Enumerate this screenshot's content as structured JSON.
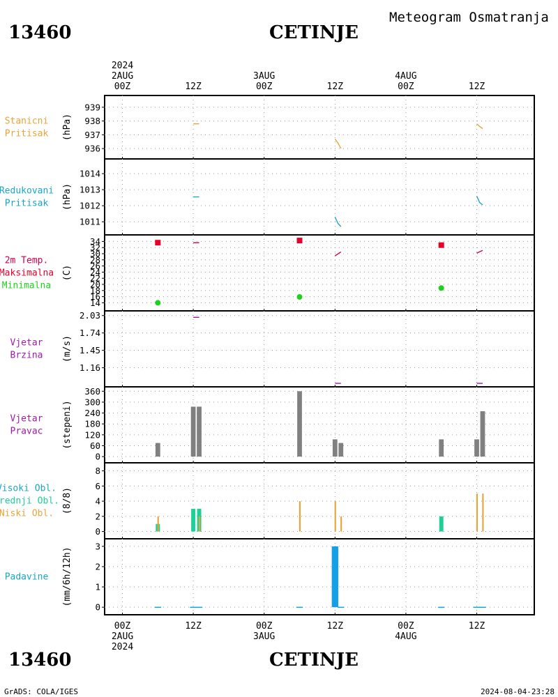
{
  "header": {
    "station_id": "13460",
    "station_name": "CETINJE",
    "product_title": "Meteogram Osmatranja"
  },
  "footer": {
    "station_id": "13460",
    "station_name": "CETINJE",
    "credit": "GrADS: COLA/IGES",
    "timestamp": "2024-08-04-23:28"
  },
  "colors": {
    "orange": "#e6a43b",
    "cyan": "#1aa6c9",
    "red": "#e8002a",
    "green": "#1ed11e",
    "purple": "#a01aa8",
    "gray": "#808080",
    "teal": "#1ecf96",
    "blue": "#14a0e6",
    "pressure_label": "#e6a43b",
    "redpressure_label": "#1aa6c9",
    "temp_label": "#d4004f"
  },
  "time_axis": {
    "top": [
      {
        "h": 0,
        "lines": [
          "2024",
          "2AUG",
          "00Z"
        ]
      },
      {
        "h": 12,
        "lines": [
          "12Z"
        ]
      },
      {
        "h": 24,
        "lines": [
          "3AUG",
          "00Z"
        ]
      },
      {
        "h": 36,
        "lines": [
          "12Z"
        ]
      },
      {
        "h": 48,
        "lines": [
          "4AUG",
          "00Z"
        ]
      },
      {
        "h": 60,
        "lines": [
          "12Z"
        ]
      }
    ],
    "bottom": [
      {
        "h": 0,
        "lines": [
          "00Z",
          "2AUG",
          "2024"
        ]
      },
      {
        "h": 12,
        "lines": [
          "12Z"
        ]
      },
      {
        "h": 24,
        "lines": [
          "00Z",
          "3AUG"
        ]
      },
      {
        "h": 36,
        "lines": [
          "12Z"
        ]
      },
      {
        "h": 48,
        "lines": [
          "00Z",
          "4AUG"
        ]
      },
      {
        "h": 60,
        "lines": [
          "12Z"
        ]
      }
    ]
  },
  "chart_data": [
    {
      "type": "line",
      "labels": [
        "Stanicni",
        "Pritisak"
      ],
      "label_colors": [
        "#e6a43b",
        "#e6a43b"
      ],
      "ylabel": "(hPa)",
      "ylim": [
        935.5,
        939.6
      ],
      "yticks": [
        936,
        937,
        938,
        939
      ],
      "grid": true,
      "series": [
        {
          "color": "#e6a43b",
          "points": [
            [
              12,
              937.8
            ],
            [
              13,
              937.8
            ]
          ]
        },
        {
          "color": "#e6a43b",
          "points": [
            [
              36,
              936.7
            ],
            [
              36.5,
              936.4
            ],
            [
              37,
              936.0
            ]
          ]
        },
        {
          "color": "#e6a43b",
          "points": [
            [
              60,
              937.8
            ],
            [
              60.5,
              937.6
            ],
            [
              61,
              937.45
            ]
          ]
        }
      ]
    },
    {
      "type": "line",
      "labels": [
        "Redukovani",
        "Pritisak"
      ],
      "label_colors": [
        "#1aa6c9",
        "#1aa6c9"
      ],
      "ylabel": "(hPa)",
      "ylim": [
        1010.4,
        1014.7
      ],
      "yticks": [
        1011,
        1012,
        1013,
        1014
      ],
      "grid": true,
      "series": [
        {
          "color": "#1aa6c9",
          "points": [
            [
              12,
              1012.55
            ],
            [
              13,
              1012.55
            ]
          ]
        },
        {
          "color": "#1aa6c9",
          "points": [
            [
              36,
              1011.3
            ],
            [
              36.5,
              1010.9
            ],
            [
              37,
              1010.7
            ]
          ]
        },
        {
          "color": "#1aa6c9",
          "points": [
            [
              60,
              1012.6
            ],
            [
              60.5,
              1012.2
            ],
            [
              61,
              1012.05
            ]
          ]
        }
      ]
    },
    {
      "type": "scatter",
      "labels": [
        "2m Temp.",
        "Maksimalna",
        "Minimalna"
      ],
      "label_colors": [
        "#d4004f",
        "#e8002a",
        "#1ed11e"
      ],
      "ylabel": "(C)",
      "ylim": [
        12.5,
        35
      ],
      "yticks": [
        14,
        16,
        18,
        20,
        22,
        24,
        26,
        28,
        30,
        32,
        34
      ],
      "grid": true,
      "series": [
        {
          "name": "2m Temp.",
          "kind": "line",
          "color": "#d4004f",
          "points": [
            [
              12,
              33.6
            ],
            [
              13,
              33.6
            ]
          ]
        },
        {
          "name": "2m Temp.",
          "kind": "line",
          "color": "#d4004f",
          "points": [
            [
              36,
              29.3
            ],
            [
              37,
              30.6
            ]
          ]
        },
        {
          "name": "2m Temp.",
          "kind": "line",
          "color": "#d4004f",
          "points": [
            [
              60,
              30.2
            ],
            [
              61,
              31.1
            ]
          ]
        },
        {
          "name": "Maksimalna",
          "kind": "square",
          "color": "#e8002a",
          "points": [
            [
              6,
              33.6
            ],
            [
              30,
              34.3
            ],
            [
              54,
              32.8
            ]
          ]
        },
        {
          "name": "Minimalna",
          "kind": "circle",
          "color": "#1ed11e",
          "points": [
            [
              6,
              14.0
            ],
            [
              30,
              15.9
            ],
            [
              54,
              18.8
            ]
          ]
        }
      ]
    },
    {
      "type": "line",
      "labels": [
        "Vjetar",
        "Brzina"
      ],
      "label_colors": [
        "#a01aa8",
        "#a01aa8"
      ],
      "ylabel": "(m/s)",
      "ylim": [
        0.9,
        2.05
      ],
      "yticks": [
        1.16,
        1.45,
        1.74,
        2.03
      ],
      "grid": true,
      "series": [
        {
          "color": "#a01aa8",
          "points": [
            [
              12,
              2.0
            ],
            [
              13,
              2.0
            ]
          ]
        },
        {
          "color": "#a01aa8",
          "points": [
            [
              36,
              0.9
            ],
            [
              37,
              0.9
            ]
          ]
        },
        {
          "color": "#a01aa8",
          "points": [
            [
              60,
              0.9
            ],
            [
              61,
              0.9
            ]
          ]
        }
      ]
    },
    {
      "type": "bar",
      "labels": [
        "Vjetar",
        "Pravac"
      ],
      "label_colors": [
        "#a01aa8",
        "#a01aa8"
      ],
      "ylabel": "(stepeni)",
      "ylim": [
        -15,
        365
      ],
      "yticks": [
        0,
        60,
        120,
        180,
        240,
        300,
        360
      ],
      "ytick_labels": [
        "0",
        "60",
        "120",
        "180",
        "240",
        "300",
        "360"
      ],
      "grid": true,
      "bar_width_h": 0.8,
      "series": [
        {
          "name": "Pravac",
          "color": "#808080",
          "points": [
            [
              6,
              75
            ],
            [
              12,
              275
            ],
            [
              13,
              275
            ],
            [
              30,
              360
            ],
            [
              36,
              95
            ],
            [
              37,
              75
            ],
            [
              54,
              95
            ],
            [
              60,
              95
            ],
            [
              61,
              250
            ]
          ]
        }
      ]
    },
    {
      "type": "bar",
      "labels": [
        "Visoki Obl.",
        "Srednji Obl.",
        "Niski Obl."
      ],
      "label_colors": [
        "#1aa6c9",
        "#1ecf96",
        "#e6a43b"
      ],
      "ylabel": "(8/8)",
      "ylim": [
        -0.5,
        8.6
      ],
      "yticks": [
        0,
        2,
        4,
        6,
        8
      ],
      "grid": true,
      "series": [
        {
          "name": "Visoki Obl.",
          "color": "#1aa6c9",
          "width_h": 0.25,
          "offset_h": -0.15,
          "points": []
        },
        {
          "name": "Srednji Obl.",
          "color": "#1ecf96",
          "width_h": 0.7,
          "offset_h": 0,
          "points": [
            [
              6,
              1
            ],
            [
              12,
              3
            ],
            [
              13,
              3
            ],
            [
              54,
              2
            ]
          ]
        },
        {
          "name": "Niski Obl.",
          "color": "#e6a43b",
          "width_h": 0.25,
          "offset_h": 0.05,
          "points": [
            [
              6,
              2
            ],
            [
              13,
              2
            ],
            [
              30,
              4
            ],
            [
              36,
              4
            ],
            [
              37,
              2
            ],
            [
              60,
              5
            ],
            [
              61,
              5
            ]
          ]
        }
      ]
    },
    {
      "type": "bar",
      "labels": [
        "Padavine"
      ],
      "label_colors": [
        "#1aa6c9"
      ],
      "ylabel": "(mm/6h/12h)",
      "ylim": [
        -0.2,
        3.2
      ],
      "yticks": [
        0,
        1,
        2,
        3
      ],
      "grid": true,
      "series": [
        {
          "name": "Padavine",
          "color": "#14a0e6",
          "width_h": 1.1,
          "offset_h": 0,
          "points": [
            [
              6,
              0.02
            ],
            [
              12,
              0.02
            ],
            [
              13,
              0.02
            ],
            [
              30,
              0.02
            ],
            [
              36,
              3.0
            ],
            [
              37,
              0.02
            ],
            [
              54,
              0.02
            ],
            [
              60,
              0.02
            ],
            [
              61,
              0.02
            ]
          ]
        }
      ]
    }
  ]
}
